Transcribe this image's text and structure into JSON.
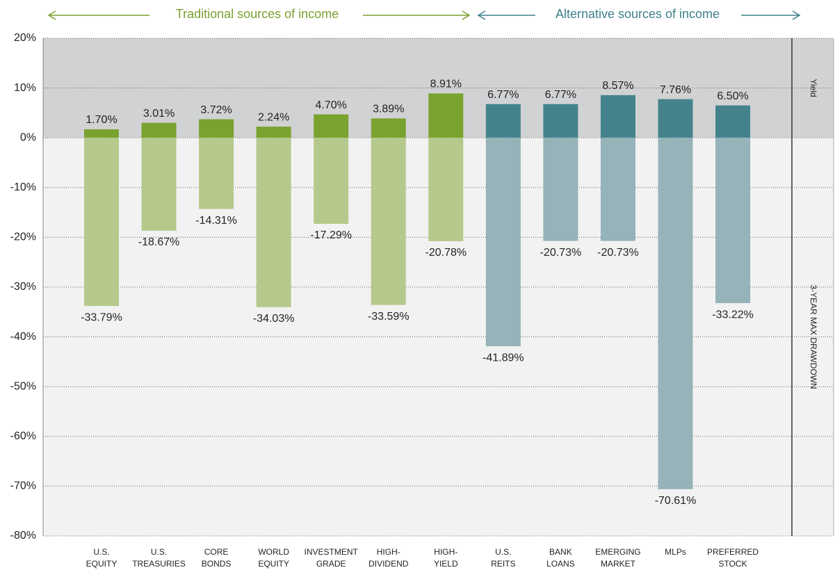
{
  "chart_data": {
    "type": "bar",
    "groups": [
      {
        "title": "Traditional sources of income",
        "color": "#7a9f2f"
      },
      {
        "title": "Alternative sources of income",
        "color": "#3f7f8a"
      }
    ],
    "categories": [
      [
        "U.S.",
        "EQUITY"
      ],
      [
        "U.S.",
        "TREASURIES"
      ],
      [
        "CORE",
        "BONDS"
      ],
      [
        "WORLD",
        "EQUITY"
      ],
      [
        "INVESTMENT",
        "GRADE"
      ],
      [
        "HIGH-",
        "DIVIDEND"
      ],
      [
        "HIGH-",
        "YIELD"
      ],
      [
        "U.S.",
        "REITS"
      ],
      [
        "BANK",
        "LOANS"
      ],
      [
        "EMERGING",
        "MARKET"
      ],
      [
        "MLPs"
      ],
      [
        "PREFERRED",
        "STOCK"
      ]
    ],
    "series": [
      {
        "name": "Yield",
        "colors": [
          "#7aa22f",
          "#7aa22f",
          "#7aa22f",
          "#7aa22f",
          "#7aa22f",
          "#7aa22f",
          "#7aa22f",
          "#44838c",
          "#44838c",
          "#44838c",
          "#44838c",
          "#44838c"
        ],
        "values": [
          1.7,
          3.01,
          3.72,
          2.24,
          4.7,
          3.89,
          8.91,
          6.77,
          6.77,
          8.57,
          7.76,
          6.5
        ],
        "value_labels": [
          "1.70%",
          "3.01%",
          "3.72%",
          "2.24%",
          "4.70%",
          "3.89%",
          "8.91%",
          "6.77%",
          "6.77%",
          "8.57%",
          "7.76%",
          "6.50%"
        ]
      },
      {
        "name": "3-YEAR MAX DRAWDOWN",
        "colors": [
          "#b5c98c",
          "#b5c98c",
          "#b5c98c",
          "#b5c98c",
          "#b5c98c",
          "#b5c98c",
          "#b5c98c",
          "#95b3b9",
          "#95b3b9",
          "#95b3b9",
          "#95b3b9",
          "#95b3b9"
        ],
        "values": [
          -33.79,
          -18.67,
          -14.31,
          -34.03,
          -17.29,
          -33.59,
          -20.78,
          -41.89,
          -20.73,
          -20.73,
          -70.61,
          -33.22
        ],
        "value_labels": [
          "-33.79%",
          "-18.67%",
          "-14.31%",
          "-34.03%",
          "-17.29%",
          "-33.59%",
          "-20.78%",
          "-41.89%",
          "-20.73%",
          "-20.73%",
          "-70.61%",
          "-33.22%"
        ]
      }
    ],
    "ylim": [
      -80,
      20
    ],
    "yticks": [
      {
        "value": 20,
        "label": "20%"
      },
      {
        "value": 10,
        "label": "10%"
      },
      {
        "value": 0,
        "label": "0%"
      },
      {
        "value": -10,
        "label": "-10%"
      },
      {
        "value": -20,
        "label": "-20%"
      },
      {
        "value": -30,
        "label": "-30%"
      },
      {
        "value": -40,
        "label": "-40%"
      },
      {
        "value": -50,
        "label": "-50%"
      },
      {
        "value": -60,
        "label": "-60%"
      },
      {
        "value": -70,
        "label": "-70%"
      },
      {
        "value": -80,
        "label": "-80%"
      }
    ],
    "grid": true
  }
}
